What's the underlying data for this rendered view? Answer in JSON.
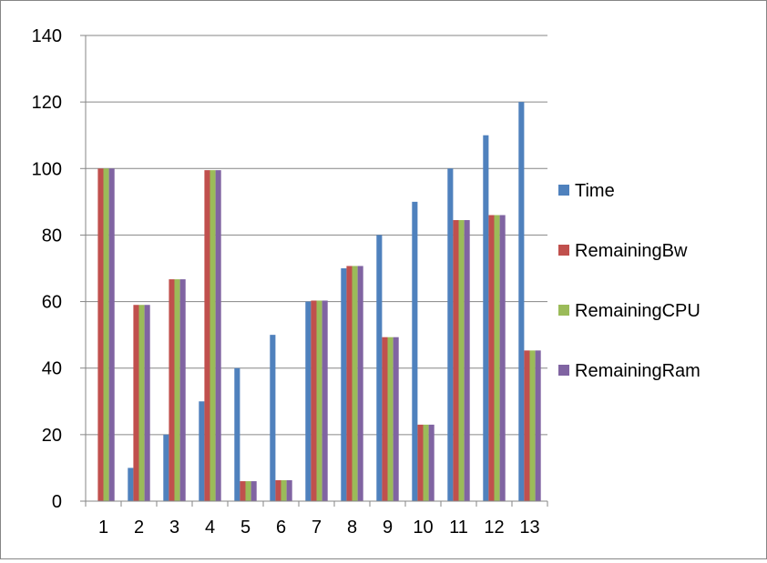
{
  "chart_data": {
    "type": "bar",
    "title": "",
    "xlabel": "",
    "ylabel": "",
    "categories": [
      "1",
      "2",
      "3",
      "4",
      "5",
      "6",
      "7",
      "8",
      "9",
      "10",
      "11",
      "12",
      "13"
    ],
    "ylim": [
      0,
      140
    ],
    "yticks": [
      0,
      20,
      40,
      60,
      80,
      100,
      120,
      140
    ],
    "grid": true,
    "legend_position": "right",
    "series": [
      {
        "name": "Time",
        "color": "#4F81BD",
        "values": [
          0,
          10,
          20,
          30,
          40,
          50,
          60,
          70,
          80,
          90,
          100,
          110,
          120
        ]
      },
      {
        "name": "RemainingBw",
        "color": "#C0504D",
        "values": [
          100,
          59,
          66.7,
          99.5,
          6,
          6.3,
          60.3,
          70.7,
          49.3,
          23,
          84.5,
          86,
          45.3
        ]
      },
      {
        "name": "RemainingCPU",
        "color": "#9BBB59",
        "values": [
          100,
          59,
          66.7,
          99.5,
          6,
          6.3,
          60.3,
          70.7,
          49.3,
          23,
          84.5,
          86,
          45.3
        ]
      },
      {
        "name": "RemainingRam",
        "color": "#8064A2",
        "values": [
          100,
          59,
          66.7,
          99.5,
          6,
          6.3,
          60.3,
          70.7,
          49.3,
          23,
          84.5,
          86,
          45.3
        ]
      }
    ]
  }
}
